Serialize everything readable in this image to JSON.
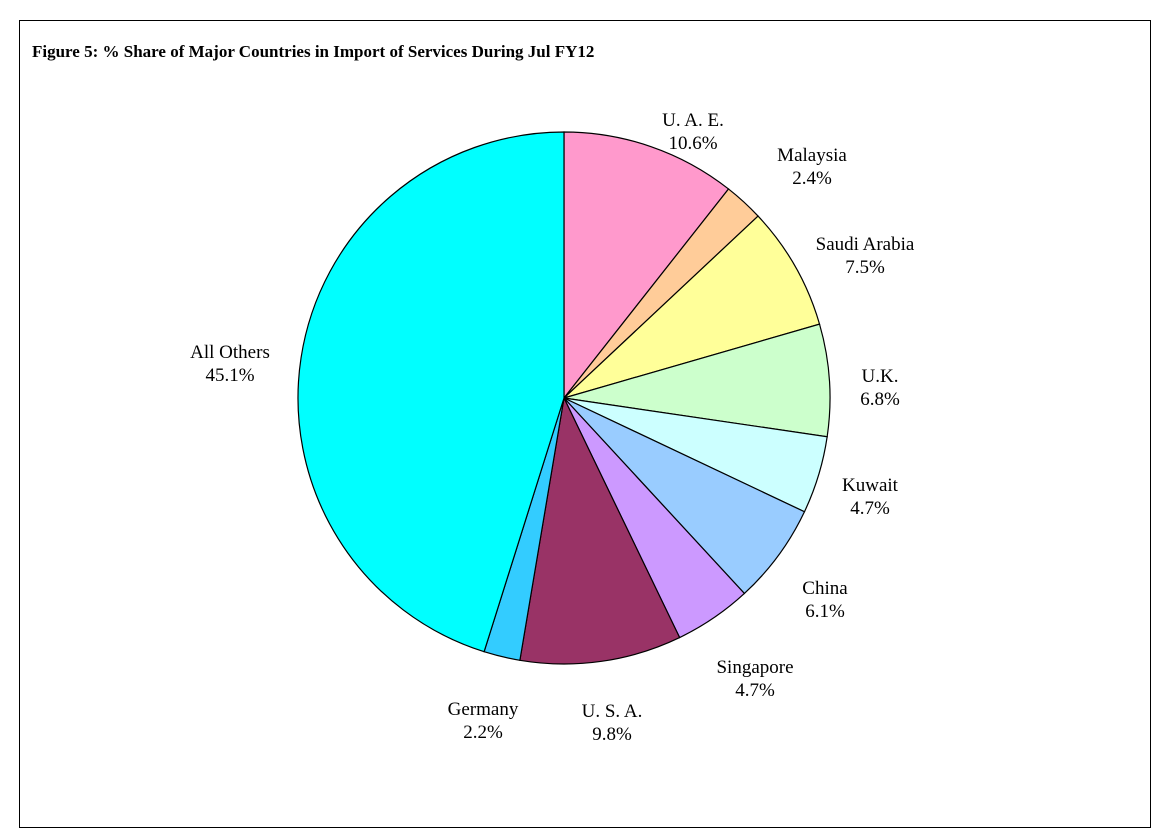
{
  "chart_data": {
    "type": "pie",
    "title": "Figure 5: % Share of Major Countries in Import of Services During Jul FY12",
    "slices": [
      {
        "label": "U. A. E.",
        "value": 10.6,
        "value_label": "10.6%",
        "color": "#FF99CC"
      },
      {
        "label": "Malaysia",
        "value": 2.4,
        "value_label": "2.4%",
        "color": "#FFCC99"
      },
      {
        "label": "Saudi Arabia",
        "value": 7.5,
        "value_label": "7.5%",
        "color": "#FFFF99"
      },
      {
        "label": "U.K.",
        "value": 6.8,
        "value_label": "6.8%",
        "color": "#CCFFCC"
      },
      {
        "label": "Kuwait",
        "value": 4.7,
        "value_label": "4.7%",
        "color": "#CCFFFF"
      },
      {
        "label": "China",
        "value": 6.1,
        "value_label": "6.1%",
        "color": "#99CCFF"
      },
      {
        "label": "Singapore",
        "value": 4.7,
        "value_label": "4.7%",
        "color": "#CC99FF"
      },
      {
        "label": "U. S. A.",
        "value": 9.8,
        "value_label": "9.8%",
        "color": "#993366"
      },
      {
        "label": "Germany",
        "value": 2.2,
        "value_label": "2.2%",
        "color": "#33CCFF"
      },
      {
        "label": "All Others",
        "value": 45.1,
        "value_label": "45.1%",
        "color": "#00FFFF"
      }
    ]
  }
}
